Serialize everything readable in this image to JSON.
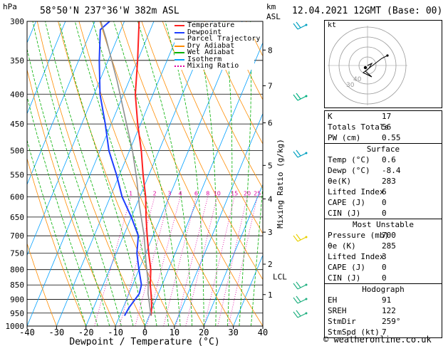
{
  "header": {
    "hpa_label": "hPa",
    "station": "58°50'N  237°36'W  382m  ASL",
    "km_label": "km",
    "asl_label": "ASL",
    "datetime": "12.04.2021  12GMT  (Base: 00)"
  },
  "legend": [
    {
      "label": "Temperature",
      "color": "#ff2020",
      "dash": false
    },
    {
      "label": "Dewpoint",
      "color": "#1f3fff",
      "dash": false
    },
    {
      "label": "Parcel Trajectory",
      "color": "#909090",
      "dash": false
    },
    {
      "label": "Dry Adiabat",
      "color": "#ff8c00",
      "dash": false
    },
    {
      "label": "Wet Adiabat",
      "color": "#00b000",
      "dash": false
    },
    {
      "label": "Isotherm",
      "color": "#00a0ff",
      "dash": false
    },
    {
      "label": "Mixing Ratio",
      "color": "#e000a0",
      "dash": true
    }
  ],
  "chart_data": {
    "type": "line",
    "xlabel": "Dewpoint / Temperature (°C)",
    "ylabel": "hPa",
    "right_axis_label": "Mixing Ratio (g/kg)",
    "xlim": [
      -40,
      40
    ],
    "ylim": [
      1000,
      300
    ],
    "x_ticks": [
      -40,
      -30,
      -20,
      -10,
      0,
      10,
      20,
      30,
      40
    ],
    "pressure_levels": [
      300,
      350,
      400,
      450,
      500,
      550,
      600,
      650,
      700,
      750,
      800,
      850,
      900,
      950,
      1000
    ],
    "height_ticks_km": [
      {
        "label": "1",
        "p": 883
      },
      {
        "label": "2",
        "p": 783
      },
      {
        "label": "3",
        "p": 690
      },
      {
        "label": "4",
        "p": 605
      },
      {
        "label": "5",
        "p": 530
      },
      {
        "label": "6",
        "p": 448
      },
      {
        "label": "7",
        "p": 387
      },
      {
        "label": "8",
        "p": 336
      }
    ],
    "lcl": {
      "label": "LCL",
      "p": 843
    },
    "mixing_ratio_labels": [
      "1",
      "2",
      "3",
      "4",
      "6",
      "8",
      "10",
      "15",
      "20",
      "25"
    ],
    "series": [
      {
        "name": "Temperature",
        "color": "#ff2020",
        "points": [
          [
            0.6,
            960
          ],
          [
            -0.5,
            925
          ],
          [
            -2.5,
            880
          ],
          [
            -4,
            850
          ],
          [
            -6,
            800
          ],
          [
            -9,
            750
          ],
          [
            -12,
            700
          ],
          [
            -15,
            650
          ],
          [
            -18,
            600
          ],
          [
            -22,
            550
          ],
          [
            -26,
            500
          ],
          [
            -31,
            450
          ],
          [
            -36,
            400
          ],
          [
            -40,
            350
          ],
          [
            -45,
            300
          ]
        ]
      },
      {
        "name": "Dewpoint",
        "color": "#1f3fff",
        "points": [
          [
            -8.4,
            960
          ],
          [
            -8,
            930
          ],
          [
            -6.5,
            880
          ],
          [
            -7,
            850
          ],
          [
            -10,
            800
          ],
          [
            -13,
            750
          ],
          [
            -15,
            700
          ],
          [
            -20,
            650
          ],
          [
            -26,
            600
          ],
          [
            -31,
            550
          ],
          [
            -37,
            500
          ],
          [
            -42,
            450
          ],
          [
            -48,
            400
          ],
          [
            -53,
            350
          ],
          [
            -57,
            310
          ],
          [
            -55,
            300
          ]
        ]
      },
      {
        "name": "Parcel Trajectory",
        "color": "#909090",
        "points": [
          [
            0.6,
            960
          ],
          [
            -3.5,
            880
          ],
          [
            -5,
            843
          ],
          [
            -8.5,
            780
          ],
          [
            -13,
            700
          ],
          [
            -19,
            620
          ],
          [
            -23.5,
            560
          ],
          [
            -29,
            500
          ],
          [
            -36,
            440
          ],
          [
            -44,
            380
          ],
          [
            -54,
            320
          ],
          [
            -58,
            300
          ]
        ]
      }
    ]
  },
  "hodograph": {
    "label": "kt",
    "ring_labels": [
      "30",
      "40"
    ]
  },
  "indices": [
    {
      "k": "K",
      "v": "17"
    },
    {
      "k": "Totals Totals",
      "v": "56"
    },
    {
      "k": "PW (cm)",
      "v": "0.55"
    }
  ],
  "surface": {
    "title": "Surface",
    "rows": [
      {
        "k": "Temp (°C)",
        "v": "0.6"
      },
      {
        "k": "Dewp (°C)",
        "v": "-8.4"
      },
      {
        "k": "θe(K)",
        "v": "283"
      },
      {
        "k": "Lifted Index",
        "v": "6"
      },
      {
        "k": "CAPE (J)",
        "v": "0"
      },
      {
        "k": "CIN (J)",
        "v": "0"
      }
    ]
  },
  "most_unstable": {
    "title": "Most Unstable",
    "rows": [
      {
        "k": "Pressure (mb)",
        "v": "700"
      },
      {
        "k": "θe (K)",
        "v": "285"
      },
      {
        "k": "Lifted Index",
        "v": "3"
      },
      {
        "k": "CAPE (J)",
        "v": "0"
      },
      {
        "k": "CIN (J)",
        "v": "0"
      }
    ]
  },
  "hodograph_table": {
    "title": "Hodograph",
    "rows": [
      {
        "k": "EH",
        "v": "91"
      },
      {
        "k": "SREH",
        "v": "122"
      },
      {
        "k": "StmDir",
        "v": "259°"
      },
      {
        "k": "StmSpd (kt)",
        "v": "7"
      }
    ]
  },
  "footer": {
    "copyright": "© weatheronline.co.uk"
  }
}
